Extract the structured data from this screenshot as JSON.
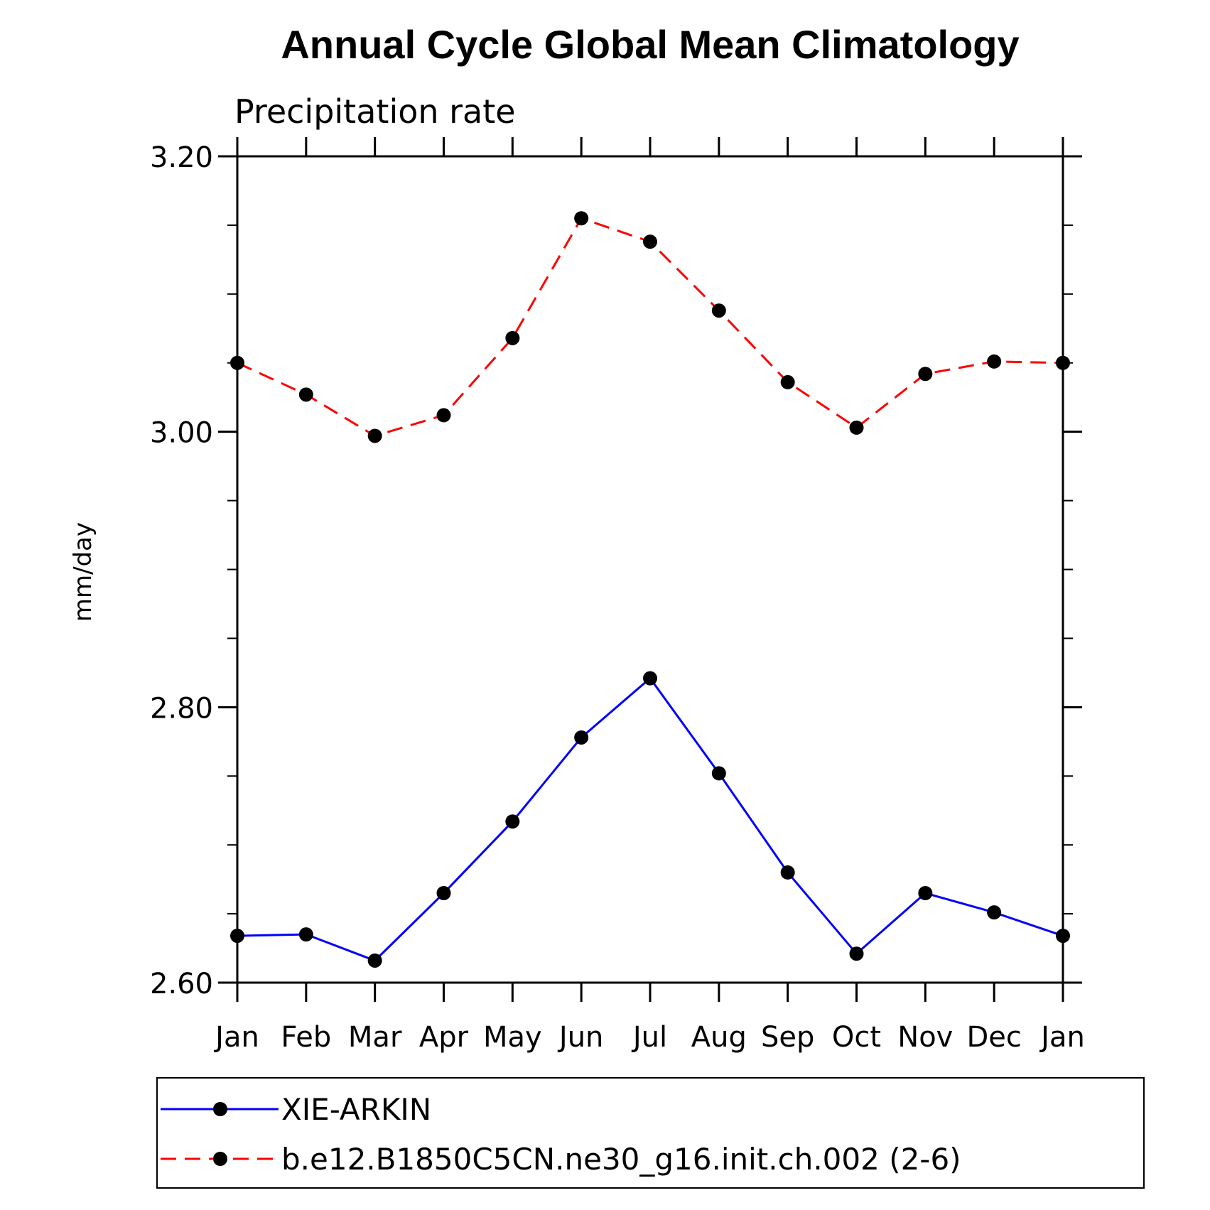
{
  "chart_data": {
    "type": "line",
    "title": "Annual Cycle Global Mean Climatology",
    "subtitle": "Precipitation rate",
    "xlabel": "",
    "ylabel": "mm/day",
    "categories": [
      "Jan",
      "Feb",
      "Mar",
      "Apr",
      "May",
      "Jun",
      "Jul",
      "Aug",
      "Sep",
      "Oct",
      "Nov",
      "Dec",
      "Jan"
    ],
    "ylim": [
      2.6,
      3.2
    ],
    "yticks_major": [
      "2.60",
      "2.80",
      "3.00",
      "3.20"
    ],
    "ytick_values": [
      2.6,
      2.8,
      3.0,
      3.2
    ],
    "minor_step": 0.05,
    "legend_position": "bottom",
    "series": [
      {
        "name": "XIE-ARKIN",
        "color": "#0000ff",
        "line_style": "solid",
        "marker": "filled-circle",
        "values": [
          2.634,
          2.635,
          2.616,
          2.665,
          2.717,
          2.778,
          2.821,
          2.752,
          2.68,
          2.621,
          2.665,
          2.651,
          2.634
        ]
      },
      {
        "name": "b.e12.B1850C5CN.ne30_g16.init.ch.002 (2-6)",
        "color": "#ff0000",
        "line_style": "dashed",
        "marker": "filled-circle",
        "values": [
          3.05,
          3.027,
          2.997,
          3.012,
          3.068,
          3.155,
          3.138,
          3.088,
          3.036,
          3.003,
          3.042,
          3.051,
          3.05
        ]
      }
    ]
  }
}
